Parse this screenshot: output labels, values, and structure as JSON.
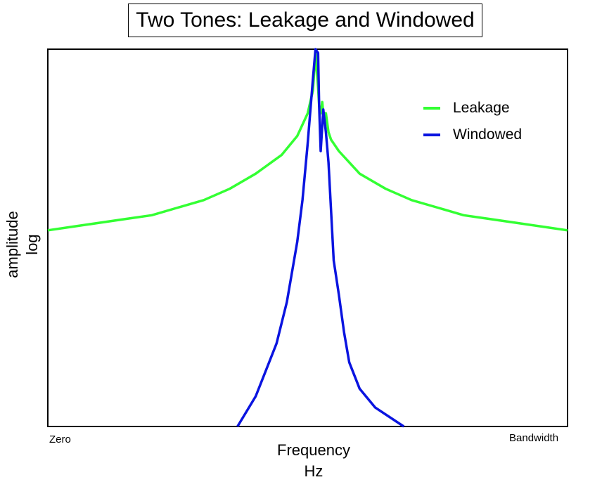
{
  "chart_data": {
    "type": "line",
    "title": "Two Tones: Leakage and Windowed",
    "xlabel": [
      "Frequency",
      "Hz"
    ],
    "ylabel": [
      "amplitude",
      "log"
    ],
    "x_tick_labels": [
      "Zero",
      "Bandwidth"
    ],
    "xlim": [
      0,
      1
    ],
    "ylim": [
      0,
      1
    ],
    "log_scale_y": true,
    "grid": false,
    "legend_position": "top-right",
    "series": [
      {
        "name": "Leakage",
        "color": "#33ff33",
        "x": [
          0.0,
          0.05,
          0.1,
          0.15,
          0.2,
          0.25,
          0.3,
          0.35,
          0.4,
          0.45,
          0.48,
          0.5,
          0.51,
          0.515,
          0.52,
          0.522,
          0.525,
          0.528,
          0.53,
          0.535,
          0.54,
          0.545,
          0.55,
          0.56,
          0.58,
          0.6,
          0.65,
          0.7,
          0.75,
          0.8,
          0.85,
          0.9,
          0.95,
          1.0
        ],
        "y": [
          0.52,
          0.53,
          0.54,
          0.55,
          0.56,
          0.58,
          0.6,
          0.63,
          0.67,
          0.72,
          0.77,
          0.83,
          0.89,
          0.99,
          0.9,
          0.85,
          0.83,
          0.86,
          0.83,
          0.83,
          0.78,
          0.76,
          0.75,
          0.73,
          0.7,
          0.67,
          0.63,
          0.6,
          0.58,
          0.56,
          0.55,
          0.54,
          0.53,
          0.52
        ]
      },
      {
        "name": "Windowed",
        "color": "#0a14e0",
        "x": [
          0.365,
          0.4,
          0.42,
          0.44,
          0.46,
          0.48,
          0.49,
          0.5,
          0.51,
          0.515,
          0.52,
          0.522,
          0.525,
          0.53,
          0.535,
          0.54,
          0.55,
          0.56,
          0.57,
          0.58,
          0.6,
          0.63,
          0.685
        ],
        "y": [
          0.0,
          0.08,
          0.15,
          0.22,
          0.33,
          0.49,
          0.6,
          0.75,
          0.92,
          1.0,
          0.99,
          0.85,
          0.73,
          0.84,
          0.78,
          0.7,
          0.44,
          0.35,
          0.25,
          0.17,
          0.1,
          0.05,
          0.0
        ]
      }
    ]
  }
}
